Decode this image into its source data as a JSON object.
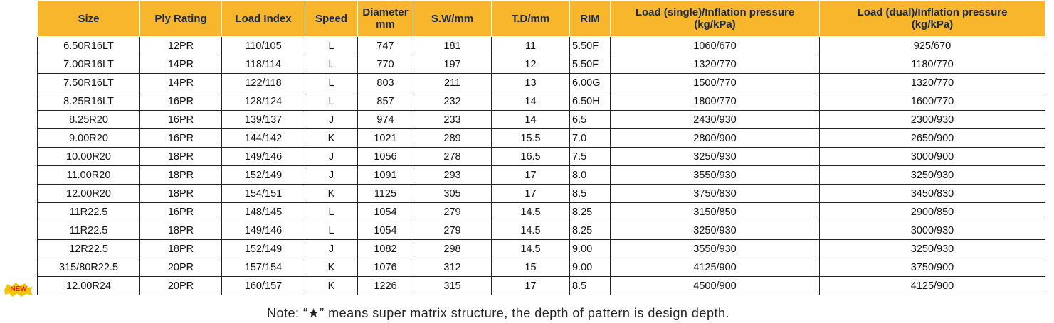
{
  "table": {
    "header": [
      "Size",
      "Ply Rating",
      "Load Index",
      "Speed",
      "Diameter\nmm",
      "S.W/mm",
      "T.D/mm",
      "RIM",
      "Load (single)/Inflation pressure\n(kg/kPa)",
      "Load (dual)/Inflation pressure\n(kg/kPa)"
    ],
    "rows": [
      [
        "6.50R16LT",
        "12PR",
        "110/105",
        "L",
        "747",
        "181",
        "11",
        "5.50F",
        "1060/670",
        "925/670"
      ],
      [
        "7.00R16LT",
        "14PR",
        "118/114",
        "L",
        "770",
        "197",
        "12",
        "5.50F",
        "1320/770",
        "1180/770"
      ],
      [
        "7.50R16LT",
        "14PR",
        "122/118",
        "L",
        "803",
        "211",
        "13",
        "6.00G",
        "1500/770",
        "1320/770"
      ],
      [
        "8.25R16LT",
        "16PR",
        "128/124",
        "L",
        "857",
        "232",
        "14",
        "6.50H",
        "1800/770",
        "1600/770"
      ],
      [
        "8.25R20",
        "16PR",
        "139/137",
        "J",
        "974",
        "233",
        "14",
        "6.5",
        "2430/930",
        "2300/930"
      ],
      [
        "9.00R20",
        "16PR",
        "144/142",
        "K",
        "1021",
        "289",
        "15.5",
        "7.0",
        "2800/900",
        "2650/900"
      ],
      [
        "10.00R20",
        "18PR",
        "149/146",
        "J",
        "1056",
        "278",
        "16.5",
        "7.5",
        "3250/930",
        "3000/900"
      ],
      [
        "11.00R20",
        "18PR",
        "152/149",
        "J",
        "1091",
        "293",
        "17",
        "8.0",
        "3550/930",
        "3250/930"
      ],
      [
        "12.00R20",
        "18PR",
        "154/151",
        "K",
        "1125",
        "305",
        "17",
        "8.5",
        "3750/830",
        "3450/830"
      ],
      [
        "11R22.5",
        "16PR",
        "148/145",
        "L",
        "1054",
        "279",
        "14.5",
        "8.25",
        "3150/850",
        "2900/850"
      ],
      [
        "11R22.5",
        "18PR",
        "149/146",
        "L",
        "1054",
        "279",
        "14.5",
        "8.25",
        "3250/930",
        "3000/930"
      ],
      [
        "12R22.5",
        "18PR",
        "152/149",
        "J",
        "1082",
        "298",
        "14.5",
        "9.00",
        "3550/930",
        "3250/930"
      ],
      [
        "315/80R22.5",
        "20PR",
        "157/154",
        "K",
        "1076",
        "312",
        "15",
        "9.00",
        "4125/900",
        "3750/900"
      ],
      [
        "12.00R24",
        "20PR",
        "160/157",
        "K",
        "1226",
        "315",
        "17",
        "8.5",
        "4500/900",
        "4125/900"
      ]
    ],
    "badge": "NEW"
  },
  "note": "Note:  “★” means super matrix structure, the depth of pattern is design depth."
}
